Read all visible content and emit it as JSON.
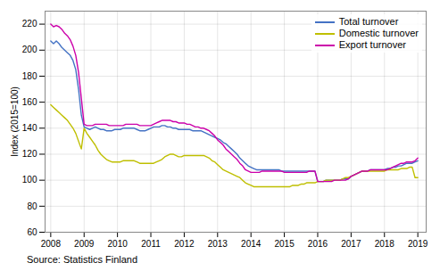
{
  "chart_data": {
    "type": "line",
    "ylabel": "Index (2015=100)",
    "source": "Source: Statistics Finland",
    "xlim": [
      2007.83,
      2019.25
    ],
    "ylim": [
      60,
      230
    ],
    "yticks": [
      60,
      80,
      100,
      120,
      140,
      160,
      180,
      200,
      220
    ],
    "xticks": [
      2008,
      2009,
      2010,
      2011,
      2012,
      2013,
      2014,
      2015,
      2016,
      2017,
      2018,
      2019
    ],
    "grid": true,
    "legend": "upper right",
    "x": [
      2008.0,
      2008.083,
      2008.167,
      2008.25,
      2008.333,
      2008.417,
      2008.5,
      2008.583,
      2008.667,
      2008.75,
      2008.833,
      2008.917,
      2009.0,
      2009.083,
      2009.167,
      2009.25,
      2009.333,
      2009.417,
      2009.5,
      2009.583,
      2009.667,
      2009.75,
      2009.833,
      2009.917,
      2010.0,
      2010.083,
      2010.167,
      2010.25,
      2010.333,
      2010.417,
      2010.5,
      2010.583,
      2010.667,
      2010.75,
      2010.833,
      2010.917,
      2011.0,
      2011.083,
      2011.167,
      2011.25,
      2011.333,
      2011.417,
      2011.5,
      2011.583,
      2011.667,
      2011.75,
      2011.833,
      2011.917,
      2012.0,
      2012.083,
      2012.167,
      2012.25,
      2012.333,
      2012.417,
      2012.5,
      2012.583,
      2012.667,
      2012.75,
      2012.833,
      2012.917,
      2013.0,
      2013.083,
      2013.167,
      2013.25,
      2013.333,
      2013.417,
      2013.5,
      2013.583,
      2013.667,
      2013.75,
      2013.833,
      2013.917,
      2014.0,
      2014.083,
      2014.167,
      2014.25,
      2014.333,
      2014.417,
      2014.5,
      2014.583,
      2014.667,
      2014.75,
      2014.833,
      2014.917,
      2015.0,
      2015.083,
      2015.167,
      2015.25,
      2015.333,
      2015.417,
      2015.5,
      2015.583,
      2015.667,
      2015.75,
      2015.833,
      2015.917,
      2016.0,
      2016.083,
      2016.167,
      2016.25,
      2016.333,
      2016.417,
      2016.5,
      2016.583,
      2016.667,
      2016.75,
      2016.833,
      2016.917,
      2017.0,
      2017.083,
      2017.167,
      2017.25,
      2017.333,
      2017.417,
      2017.5,
      2017.583,
      2017.667,
      2017.75,
      2017.833,
      2017.917,
      2018.0,
      2018.083,
      2018.167,
      2018.25,
      2018.333,
      2018.417,
      2018.5,
      2018.583,
      2018.667,
      2018.75,
      2018.833,
      2018.917,
      2019.0
    ],
    "series": [
      {
        "name": "Total turnover",
        "color": "#4472C4",
        "values": [
          207,
          205,
          207,
          205,
          202,
          200,
          198,
          196,
          192,
          185,
          170,
          150,
          141,
          140,
          139,
          140,
          141,
          140,
          139,
          139,
          138,
          138,
          138,
          139,
          139,
          139,
          140,
          140,
          140,
          140,
          140,
          139,
          138,
          138,
          138,
          139,
          140,
          141,
          141,
          141,
          142,
          142,
          141,
          141,
          140,
          140,
          139,
          139,
          139,
          139,
          139,
          138,
          138,
          138,
          138,
          137,
          136,
          135,
          134,
          133,
          132,
          131,
          129,
          128,
          126,
          124,
          122,
          120,
          117,
          115,
          113,
          111,
          110,
          109,
          108,
          108,
          108,
          108,
          108,
          108,
          108,
          108,
          108,
          107,
          107,
          107,
          107,
          107,
          107,
          107,
          107,
          107,
          107,
          107,
          107,
          107,
          99,
          99,
          99,
          100,
          100,
          100,
          100,
          100,
          100,
          101,
          101,
          101,
          103,
          104,
          105,
          106,
          107,
          107,
          107,
          108,
          108,
          108,
          108,
          108,
          108,
          109,
          109,
          110,
          110,
          111,
          111,
          112,
          113,
          113,
          113,
          114,
          115
        ]
      },
      {
        "name": "Domestic turnover",
        "color": "#BFBF00",
        "values": [
          158,
          156,
          154,
          152,
          150,
          148,
          146,
          143,
          140,
          136,
          130,
          124,
          140,
          136,
          133,
          130,
          127,
          123,
          120,
          118,
          116,
          115,
          114,
          114,
          114,
          114,
          115,
          115,
          115,
          115,
          115,
          114,
          113,
          113,
          113,
          113,
          113,
          113,
          114,
          115,
          116,
          118,
          119,
          120,
          120,
          119,
          118,
          118,
          119,
          119,
          119,
          119,
          119,
          119,
          119,
          119,
          118,
          117,
          115,
          114,
          112,
          110,
          108,
          107,
          106,
          105,
          104,
          103,
          102,
          100,
          98,
          97,
          96,
          95,
          95,
          95,
          95,
          95,
          95,
          95,
          95,
          95,
          95,
          95,
          95,
          95,
          95,
          96,
          96,
          96,
          97,
          97,
          98,
          98,
          98,
          98,
          99,
          99,
          99,
          100,
          100,
          100,
          100,
          100,
          100,
          101,
          102,
          102,
          103,
          104,
          105,
          106,
          107,
          107,
          107,
          107,
          107,
          107,
          107,
          107,
          107,
          108,
          108,
          108,
          108,
          108,
          109,
          109,
          109,
          110,
          110,
          102,
          102
        ]
      },
      {
        "name": "Export turnover",
        "color": "#CC00AA",
        "values": [
          220,
          218,
          219,
          218,
          216,
          213,
          211,
          208,
          203,
          196,
          183,
          163,
          143,
          142,
          142,
          142,
          143,
          143,
          143,
          143,
          143,
          142,
          142,
          142,
          142,
          142,
          142,
          143,
          143,
          143,
          143,
          143,
          142,
          142,
          142,
          142,
          142,
          143,
          144,
          145,
          146,
          146,
          146,
          146,
          145,
          145,
          144,
          144,
          144,
          143,
          143,
          142,
          141,
          141,
          140,
          140,
          139,
          138,
          136,
          134,
          131,
          129,
          127,
          124,
          122,
          120,
          118,
          116,
          113,
          111,
          108,
          107,
          106,
          106,
          106,
          106,
          107,
          107,
          107,
          107,
          107,
          107,
          107,
          107,
          106,
          106,
          106,
          106,
          106,
          106,
          106,
          106,
          106,
          107,
          107,
          107,
          99,
          99,
          99,
          99,
          99,
          99,
          100,
          100,
          100,
          100,
          100,
          101,
          103,
          104,
          105,
          106,
          107,
          107,
          107,
          108,
          108,
          108,
          108,
          108,
          108,
          108,
          109,
          110,
          111,
          112,
          113,
          113,
          114,
          114,
          114,
          115,
          117
        ]
      }
    ]
  }
}
